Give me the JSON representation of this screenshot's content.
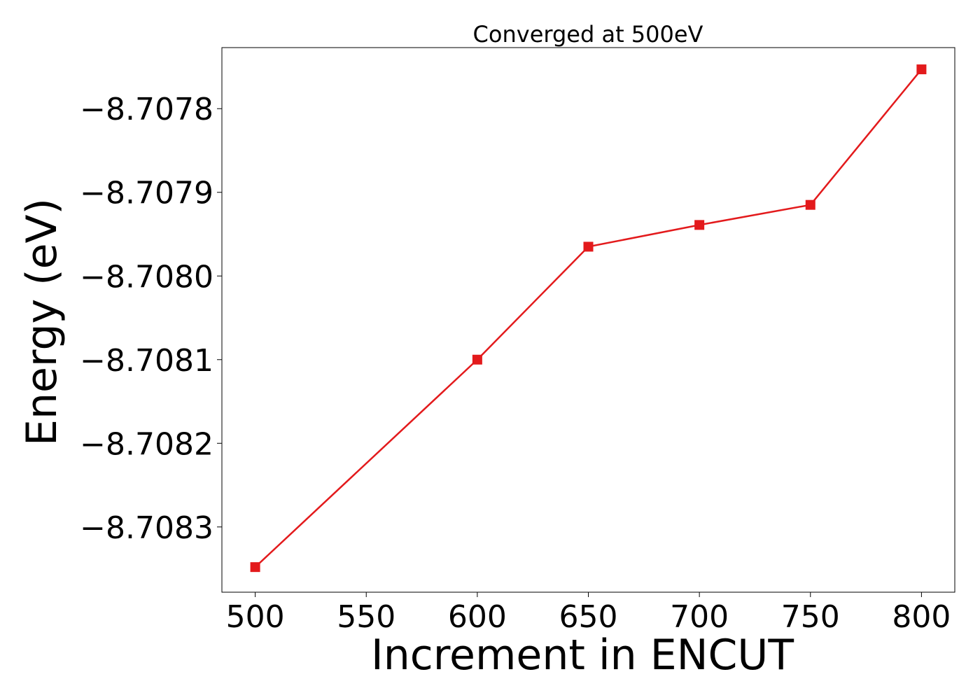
{
  "chart_data": {
    "type": "line",
    "title": "Converged at 500eV",
    "xlabel": "Increment in ENCUT",
    "ylabel": "Energy (eV)",
    "x": [
      500,
      600,
      650,
      700,
      750,
      800
    ],
    "series": [
      {
        "values": [
          -8.708348,
          -8.7081,
          -8.707965,
          -8.707939,
          -8.707915,
          -8.707753
        ],
        "color": "#e31a1c",
        "marker": "square"
      }
    ],
    "xlim": [
      485,
      815
    ],
    "ylim": [
      -8.708378,
      -8.707727
    ],
    "xticks": [
      500,
      550,
      600,
      650,
      700,
      750,
      800
    ],
    "xtick_labels": [
      "500",
      "550",
      "600",
      "650",
      "700",
      "750",
      "800"
    ],
    "yticks": [
      -8.7083,
      -8.7082,
      -8.7081,
      -8.708,
      -8.7079,
      -8.7078
    ],
    "ytick_labels": [
      "−8.7083",
      "−8.7082",
      "−8.7081",
      "−8.7080",
      "−8.7079",
      "−8.7078"
    ],
    "grid": false,
    "legend": false
  }
}
